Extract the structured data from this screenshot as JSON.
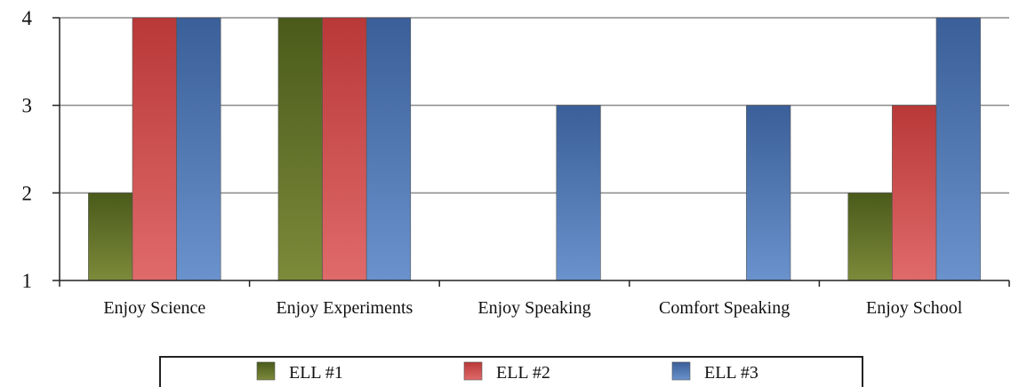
{
  "chart_data": {
    "type": "bar",
    "categories": [
      "Enjoy Science",
      "Enjoy Experiments",
      "Enjoy Speaking",
      "Comfort Speaking",
      "Enjoy School"
    ],
    "series": [
      {
        "name": "ELL #1",
        "values": [
          2,
          4,
          1,
          1,
          2
        ],
        "color": "#5a6b22"
      },
      {
        "name": "ELL #2",
        "values": [
          4,
          4,
          1,
          1,
          3
        ],
        "color": "#c94444"
      },
      {
        "name": "ELL #3",
        "values": [
          4,
          4,
          3,
          3,
          4
        ],
        "color": "#4a72ad"
      }
    ],
    "yticks": [
      1,
      2,
      3,
      4
    ],
    "ylim": [
      1,
      4
    ],
    "grid": true,
    "legend_position": "bottom"
  }
}
